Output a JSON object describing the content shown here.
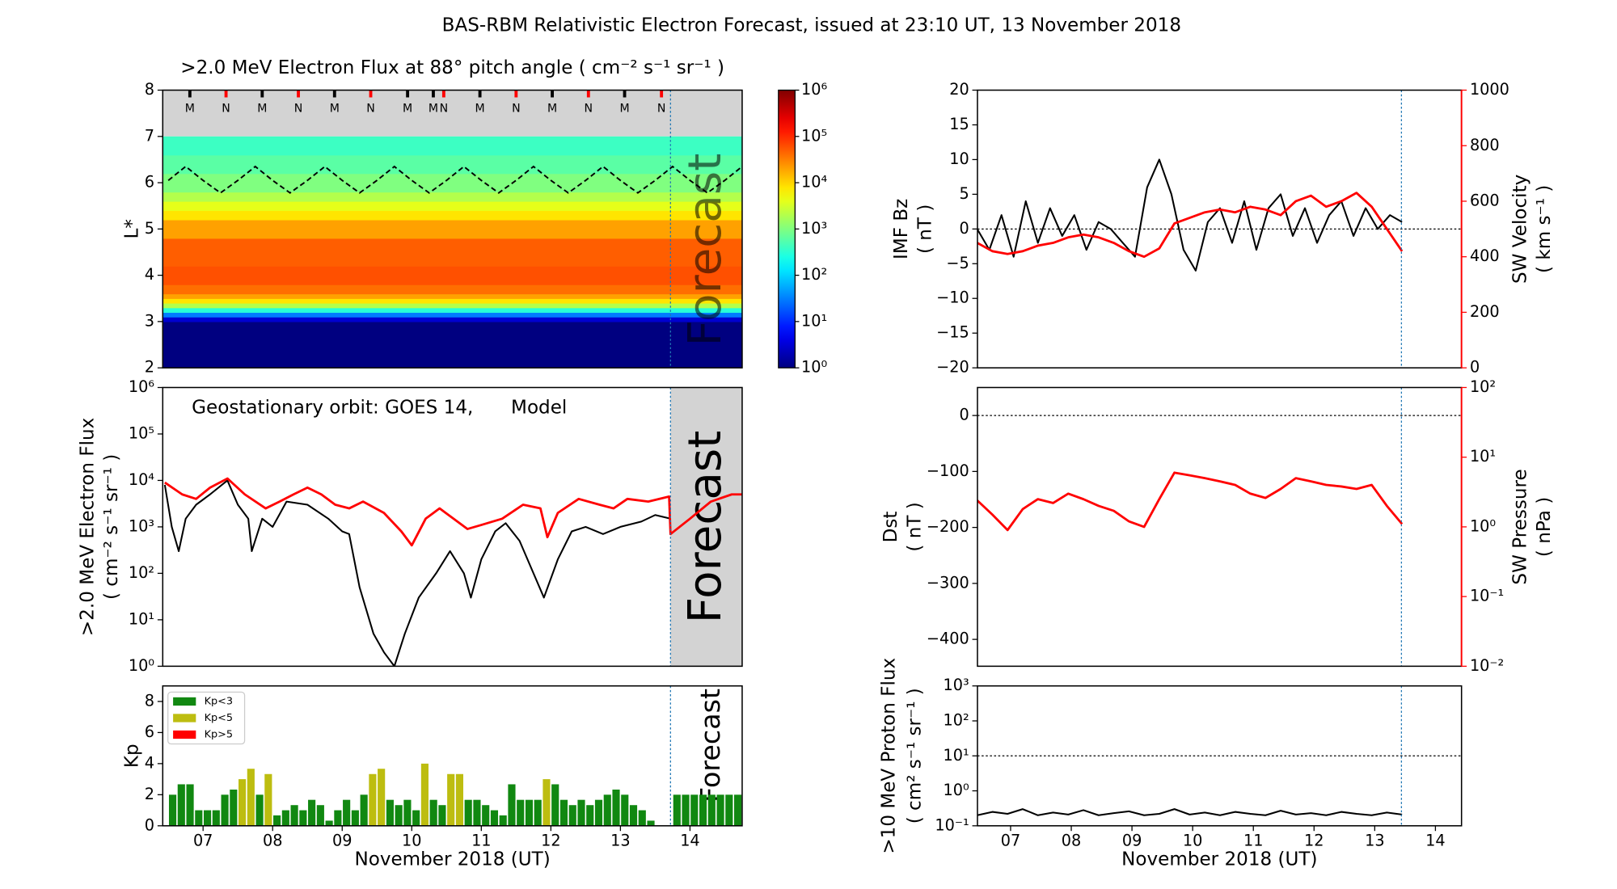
{
  "title": "BAS-RBM Relativistic Electron Forecast, issued at 23:10 UT, 13 November 2018",
  "chart_data": [
    {
      "type": "heatmap",
      "title": ">2.0 MeV Electron Flux at 88° pitch angle ( cm⁻² s⁻¹ sr⁻¹ )",
      "ylabel": [
        "L*"
      ],
      "xlim": [
        6.42,
        14.75
      ],
      "ylim": [
        2,
        8
      ],
      "yticks": [
        2,
        3,
        4,
        5,
        6,
        7,
        8
      ],
      "ybins": [
        2,
        3,
        3.1,
        3.2,
        3.3,
        3.4,
        3.5,
        3.6,
        3.8,
        4.2,
        4.8,
        5.2,
        5.4,
        5.6,
        5.8,
        6.2,
        6.6,
        7
      ],
      "values": [
        1,
        3,
        30,
        300,
        2000,
        8000,
        20000,
        40000,
        60000,
        50000,
        20000,
        8000,
        4000,
        2000,
        1000,
        600,
        400
      ],
      "colorbar": {
        "lim": [
          1,
          1000000
        ],
        "log": true,
        "ticks": [
          {
            "value": 1,
            "label": "10⁰"
          },
          {
            "value": 10,
            "label": "10¹"
          },
          {
            "value": 100,
            "label": "10²"
          },
          {
            "value": 1000,
            "label": "10³"
          },
          {
            "value": 10000,
            "label": "10⁴"
          },
          {
            "value": 100000,
            "label": "10⁵"
          },
          {
            "value": 1000000,
            "label": "10⁶"
          }
        ]
      },
      "markers": {
        "x": [
          6.81,
          7.33,
          7.85,
          8.37,
          8.89,
          9.41,
          9.94,
          10.31,
          10.46,
          10.98,
          11.5,
          12.02,
          12.54,
          13.06,
          13.59
        ],
        "labels": [
          "M",
          "N",
          "M",
          "N",
          "M",
          "N",
          "M",
          "M",
          "N",
          "M",
          "N",
          "M",
          "N",
          "M",
          "N"
        ],
        "colors": [
          "#000000",
          "#ff0000",
          "#000000",
          "#ff0000",
          "#000000",
          "#ff0000",
          "#000000",
          "#000000",
          "#ff0000",
          "#000000",
          "#ff0000",
          "#000000",
          "#ff0000",
          "#000000",
          "#ff0000"
        ]
      },
      "orbit": {
        "x": [
          6.5,
          6.75,
          7,
          7.25,
          7.5,
          7.75,
          8,
          8.25,
          8.5,
          8.75,
          9,
          9.25,
          9.5,
          9.75,
          10,
          10.25,
          10.5,
          10.75,
          11,
          11.25,
          11.5,
          11.75,
          12,
          12.25,
          12.5,
          12.75,
          13,
          13.25,
          13.5,
          13.75,
          14,
          14.25,
          14.5,
          14.75
        ],
        "values": [
          6.05,
          6.35,
          6.05,
          5.78,
          6.05,
          6.35,
          6.05,
          5.78,
          6.05,
          6.35,
          6.05,
          5.78,
          6.05,
          6.35,
          6.05,
          5.78,
          6.05,
          6.35,
          6.05,
          5.78,
          6.05,
          6.35,
          6.05,
          5.78,
          6.05,
          6.35,
          6.05,
          5.78,
          6.05,
          6.35,
          6.05,
          5.78,
          6.05,
          6.35
        ]
      },
      "forecast_x": 13.72,
      "forecast_label": "Forecast"
    },
    {
      "type": "line",
      "ylabel": [
        ">2.0 MeV Electron Flux",
        "( cm⁻² s⁻¹ sr⁻¹ )"
      ],
      "xlim": [
        6.42,
        14.75
      ],
      "ylim": [
        1,
        1000000
      ],
      "ylog": true,
      "yticks": [
        {
          "value": 1,
          "label": "10⁰"
        },
        {
          "value": 10,
          "label": "10¹"
        },
        {
          "value": 100,
          "label": "10²"
        },
        {
          "value": 1000,
          "label": "10³"
        },
        {
          "value": 10000,
          "label": "10⁴"
        },
        {
          "value": 100000,
          "label": "10⁵"
        },
        {
          "value": 1000000,
          "label": "10⁶"
        }
      ],
      "annotation": "Geostationary orbit:   GOES 14,",
      "series": [
        {
          "color": "#000000",
          "x": [
            6.45,
            6.55,
            6.65,
            6.75,
            6.9,
            7.1,
            7.35,
            7.5,
            7.65,
            7.7,
            7.85,
            8.0,
            8.2,
            8.5,
            8.8,
            9.0,
            9.1,
            9.25,
            9.45,
            9.6,
            9.75,
            9.9,
            10.1,
            10.35,
            10.55,
            10.75,
            10.85,
            11.0,
            11.2,
            11.35,
            11.55,
            11.75,
            11.9,
            12.1,
            12.3,
            12.5,
            12.75,
            13.0,
            13.3,
            13.5,
            13.72
          ],
          "values": [
            8000,
            1000,
            300,
            1500,
            3000,
            5000,
            10000,
            3000,
            1500,
            300,
            1500,
            1000,
            3500,
            3000,
            1500,
            800,
            700,
            50,
            5,
            2,
            1,
            5,
            30,
            100,
            300,
            100,
            30,
            200,
            800,
            1200,
            500,
            100,
            30,
            200,
            800,
            1000,
            700,
            1000,
            1300,
            1800,
            1500
          ]
        },
        {
          "name": "Model",
          "color": "#ff0000",
          "x": [
            6.45,
            6.7,
            6.9,
            7.1,
            7.35,
            7.6,
            7.9,
            8.1,
            8.3,
            8.5,
            8.7,
            8.9,
            9.1,
            9.3,
            9.6,
            9.85,
            10.0,
            10.2,
            10.4,
            10.6,
            10.8,
            11.0,
            11.3,
            11.6,
            11.85,
            11.95,
            12.1,
            12.4,
            12.7,
            12.9,
            13.1,
            13.4,
            13.7,
            13.72,
            14.0,
            14.3,
            14.6,
            14.75
          ],
          "values": [
            9000,
            5000,
            4000,
            7000,
            11000,
            5000,
            2500,
            3500,
            5000,
            7000,
            5000,
            3000,
            2500,
            3500,
            2000,
            800,
            400,
            1500,
            2500,
            1500,
            900,
            1100,
            1500,
            3000,
            2500,
            600,
            2000,
            4000,
            3000,
            2500,
            4000,
            3500,
            4500,
            700,
            1500,
            3500,
            5000,
            5000
          ]
        }
      ],
      "forecast_x": 13.72,
      "forecast_label": "Forecast"
    },
    {
      "type": "bar",
      "ylabel": [
        "Kp"
      ],
      "xlabel": "November 2018 (UT)",
      "xlim": [
        6.42,
        14.75
      ],
      "ylim": [
        0,
        9
      ],
      "yticks": [
        0,
        2,
        4,
        6,
        8
      ],
      "xticks": [
        {
          "value": 7,
          "label": "07"
        },
        {
          "value": 8,
          "label": "08"
        },
        {
          "value": 9,
          "label": "09"
        },
        {
          "value": 10,
          "label": "10"
        },
        {
          "value": 11,
          "label": "11"
        },
        {
          "value": 12,
          "label": "12"
        },
        {
          "value": 13,
          "label": "13"
        },
        {
          "value": 14,
          "label": "14"
        }
      ],
      "legend": [
        {
          "label": "Kp<3",
          "color": "#118811"
        },
        {
          "label": "Kp<5",
          "color": "#bdbd10"
        },
        {
          "label": "Kp>5",
          "color": "#ff0000"
        }
      ],
      "x": [
        6.5625,
        6.6875,
        6.8125,
        6.9375,
        7.0625,
        7.1875,
        7.3125,
        7.4375,
        7.5625,
        7.6875,
        7.8125,
        7.9375,
        8.0625,
        8.1875,
        8.3125,
        8.4375,
        8.5625,
        8.6875,
        8.8125,
        8.9375,
        9.0625,
        9.1875,
        9.3125,
        9.4375,
        9.5625,
        9.6875,
        9.8125,
        9.9375,
        10.0625,
        10.1875,
        10.3125,
        10.4375,
        10.5625,
        10.6875,
        10.8125,
        10.9375,
        11.0625,
        11.1875,
        11.3125,
        11.4375,
        11.5625,
        11.6875,
        11.8125,
        11.9375,
        12.0625,
        12.1875,
        12.3125,
        12.4375,
        12.5625,
        12.6875,
        12.8125,
        12.9375,
        13.0625,
        13.1875,
        13.3125,
        13.4375,
        13.8125,
        13.9375,
        14.0625,
        14.1875,
        14.3125,
        14.4375,
        14.5625,
        14.6875
      ],
      "values": [
        2,
        2.67,
        2.67,
        1,
        1,
        1,
        2,
        2.33,
        3,
        3.67,
        2,
        3.33,
        0.67,
        1,
        1.33,
        1,
        1.67,
        1.33,
        0.33,
        1,
        1.67,
        1,
        2,
        3.33,
        3.67,
        1.67,
        1.33,
        1.67,
        1,
        4,
        1.67,
        1.33,
        3.33,
        3.33,
        1.67,
        1.67,
        1.33,
        1,
        0.67,
        2.67,
        1.67,
        1.67,
        1.67,
        3,
        2.67,
        1.67,
        1.33,
        1.67,
        1.33,
        1.67,
        2,
        2.33,
        2,
        1.33,
        1,
        0.33,
        2,
        2,
        2,
        2,
        2,
        2,
        2,
        2
      ],
      "color_index": [
        0,
        0,
        0,
        0,
        0,
        0,
        0,
        0,
        1,
        1,
        0,
        1,
        0,
        0,
        0,
        0,
        0,
        0,
        0,
        0,
        0,
        0,
        0,
        1,
        1,
        0,
        0,
        0,
        0,
        1,
        0,
        0,
        1,
        1,
        0,
        0,
        0,
        0,
        0,
        0,
        0,
        0,
        0,
        1,
        0,
        0,
        0,
        0,
        0,
        0,
        0,
        0,
        0,
        0,
        0,
        0,
        0,
        0,
        0,
        0,
        0,
        0,
        0,
        0
      ],
      "forecast_x": 13.72,
      "forecast_label": "Forecast"
    },
    {
      "type": "line",
      "ylabel": [
        "IMF Bz",
        "( nT )"
      ],
      "y2label": [
        "SW Velocity",
        "( km s⁻¹ )"
      ],
      "xlim": [
        6.454,
        14.43
      ],
      "ylim": [
        -20,
        20
      ],
      "yticks": [
        20,
        15,
        10,
        5,
        0,
        {
          "value": -5,
          "label": "−5"
        },
        {
          "value": -10,
          "label": "−10"
        },
        {
          "value": -15,
          "label": "−15"
        },
        {
          "value": -20,
          "label": "−20"
        }
      ],
      "y2lim": [
        0,
        1000
      ],
      "y2ticks": [
        0,
        200,
        400,
        600,
        800,
        1000
      ],
      "reference_y": 0,
      "series": [
        {
          "color": "#000000",
          "x": [
            6.45,
            6.65,
            6.85,
            7.05,
            7.25,
            7.45,
            7.65,
            7.85,
            8.05,
            8.25,
            8.45,
            8.65,
            8.85,
            9.05,
            9.25,
            9.45,
            9.65,
            9.85,
            10.05,
            10.25,
            10.45,
            10.65,
            10.85,
            11.05,
            11.25,
            11.45,
            11.65,
            11.85,
            12.05,
            12.25,
            12.45,
            12.65,
            12.85,
            13.05,
            13.25,
            13.45
          ],
          "values": [
            0,
            -3,
            2,
            -4,
            4,
            -2,
            3,
            -1,
            2,
            -3,
            1,
            0,
            -2,
            -4,
            6,
            10,
            5,
            -3,
            -6,
            1,
            3,
            -2,
            4,
            -3,
            3,
            5,
            -1,
            3,
            -2,
            2,
            4,
            -1,
            3,
            0,
            2,
            1
          ]
        },
        {
          "color": "#ff0000",
          "axis": "y2",
          "x": [
            6.45,
            6.7,
            6.95,
            7.2,
            7.45,
            7.7,
            7.95,
            8.2,
            8.45,
            8.7,
            8.95,
            9.2,
            9.45,
            9.7,
            9.95,
            10.2,
            10.45,
            10.7,
            10.95,
            11.2,
            11.45,
            11.7,
            11.95,
            12.2,
            12.45,
            12.7,
            12.95,
            13.2,
            13.45
          ],
          "values": [
            450,
            420,
            410,
            420,
            440,
            450,
            470,
            480,
            470,
            450,
            420,
            400,
            430,
            520,
            540,
            560,
            570,
            560,
            580,
            570,
            550,
            600,
            620,
            580,
            600,
            630,
            580,
            500,
            420
          ]
        }
      ],
      "forecast_x": 13.44
    },
    {
      "type": "line",
      "ylabel": [
        "Dst",
        "( nT )"
      ],
      "y2label": [
        "SW Pressure",
        "( nPa )"
      ],
      "xlim": [
        6.454,
        14.43
      ],
      "ylim": [
        -448,
        50
      ],
      "yticks": [
        0,
        {
          "value": -100,
          "label": "−100"
        },
        {
          "value": -200,
          "label": "−200"
        },
        {
          "value": -300,
          "label": "−300"
        },
        {
          "value": -400,
          "label": "−400"
        }
      ],
      "y2lim": [
        0.01,
        100
      ],
      "y2log": true,
      "y2ticks": [
        {
          "value": 0.01,
          "label": "10⁻²"
        },
        {
          "value": 0.1,
          "label": "10⁻¹"
        },
        {
          "value": 1,
          "label": "10⁰"
        },
        {
          "value": 10,
          "label": "10¹"
        },
        {
          "value": 100,
          "label": "10²"
        }
      ],
      "reference_y": 0,
      "series": [
        {
          "color": "#ff0000",
          "axis": "y2",
          "x": [
            6.45,
            6.7,
            6.95,
            7.2,
            7.45,
            7.7,
            7.95,
            8.2,
            8.45,
            8.7,
            8.95,
            9.2,
            9.45,
            9.7,
            9.95,
            10.2,
            10.45,
            10.7,
            10.95,
            11.2,
            11.45,
            11.7,
            11.95,
            12.2,
            12.45,
            12.7,
            12.95,
            13.2,
            13.45
          ],
          "values": [
            2.4,
            1.5,
            0.9,
            1.8,
            2.5,
            2.2,
            3,
            2.5,
            2,
            1.7,
            1.2,
            1,
            2.5,
            6,
            5.5,
            5,
            4.5,
            4,
            3,
            2.6,
            3.5,
            5,
            4.5,
            4,
            3.8,
            3.5,
            4,
            2,
            1.1
          ]
        }
      ],
      "forecast_x": 13.44
    },
    {
      "type": "line",
      "ylabel": [
        ">10 MeV Proton Flux",
        "( cm² s⁻¹ sr⁻¹ )"
      ],
      "xlabel": "November 2018 (UT)",
      "xlim": [
        6.454,
        14.43
      ],
      "ylim": [
        0.1,
        1000
      ],
      "ylog": true,
      "yticks": [
        {
          "value": 0.1,
          "label": "10⁻¹"
        },
        {
          "value": 1,
          "label": "10⁰"
        },
        {
          "value": 10,
          "label": "10¹"
        },
        {
          "value": 100,
          "label": "10²"
        },
        {
          "value": 1000,
          "label": "10³"
        }
      ],
      "xticks": [
        {
          "value": 7,
          "label": "07"
        },
        {
          "value": 8,
          "label": "08"
        },
        {
          "value": 9,
          "label": "09"
        },
        {
          "value": 10,
          "label": "10"
        },
        {
          "value": 11,
          "label": "11"
        },
        {
          "value": 12,
          "label": "12"
        },
        {
          "value": 13,
          "label": "13"
        },
        {
          "value": 14,
          "label": "14"
        }
      ],
      "reference_y": 10,
      "series": [
        {
          "color": "#000000",
          "x": [
            6.45,
            6.7,
            6.95,
            7.2,
            7.45,
            7.7,
            7.95,
            8.2,
            8.45,
            8.7,
            8.95,
            9.2,
            9.45,
            9.7,
            9.95,
            10.2,
            10.45,
            10.7,
            10.95,
            11.2,
            11.45,
            11.7,
            11.95,
            12.2,
            12.45,
            12.7,
            12.95,
            13.2,
            13.45
          ],
          "values": [
            0.2,
            0.25,
            0.22,
            0.3,
            0.2,
            0.24,
            0.21,
            0.28,
            0.2,
            0.23,
            0.26,
            0.2,
            0.22,
            0.3,
            0.21,
            0.24,
            0.2,
            0.25,
            0.22,
            0.2,
            0.27,
            0.21,
            0.23,
            0.2,
            0.25,
            0.22,
            0.2,
            0.24,
            0.21
          ]
        }
      ],
      "forecast_x": 13.44
    }
  ]
}
